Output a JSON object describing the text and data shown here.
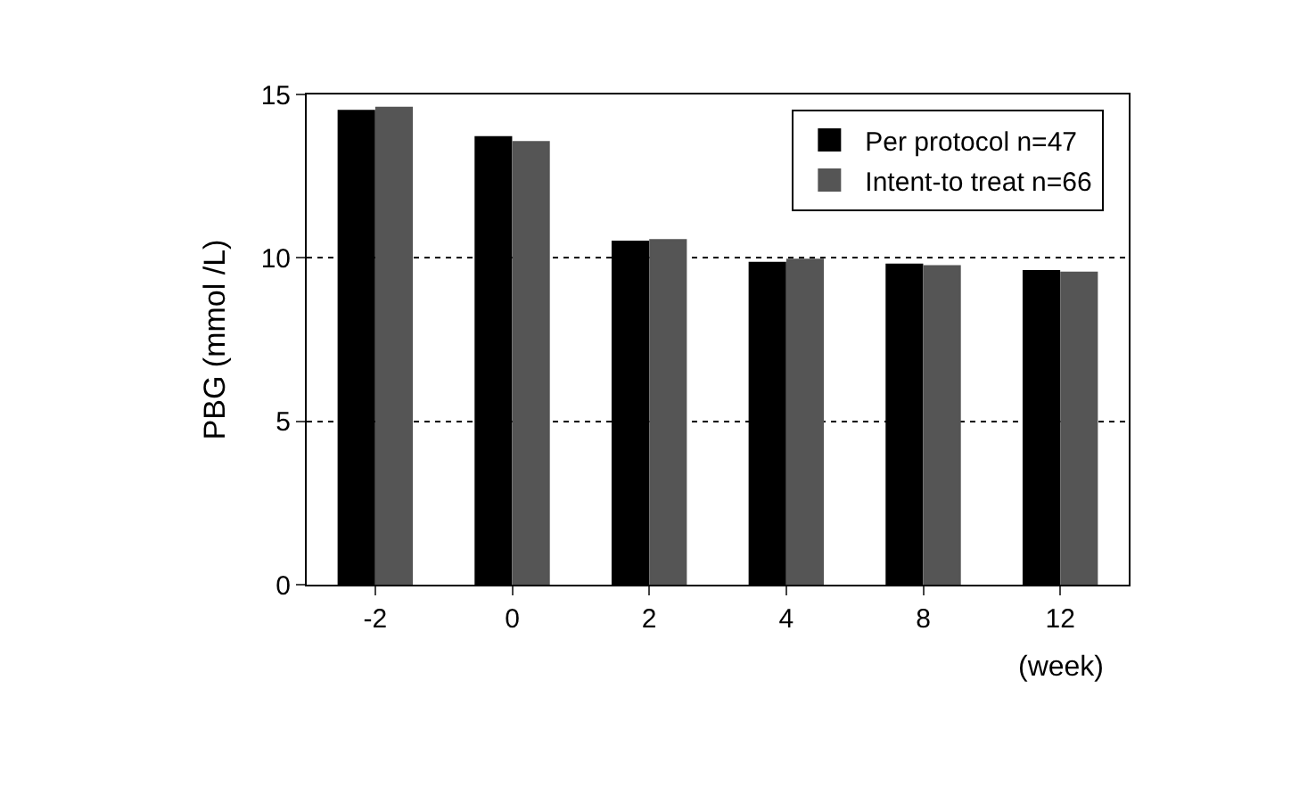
{
  "chart_data": {
    "type": "bar",
    "ylabel": "PBG (mmol /L)",
    "xlabel": "(week)",
    "categories": [
      "-2",
      "0",
      "2",
      "4",
      "8",
      "12"
    ],
    "series": [
      {
        "name": "Per protocol n=47",
        "color": "#000000",
        "values": [
          14.5,
          13.7,
          10.5,
          9.85,
          9.8,
          9.6
        ]
      },
      {
        "name": "Intent-to treat n=66",
        "color": "#555555",
        "values": [
          14.6,
          13.55,
          10.55,
          9.95,
          9.75,
          9.55
        ]
      }
    ],
    "ylim": [
      0,
      15
    ],
    "yticks": [
      0,
      5,
      10,
      15
    ],
    "grid": "y",
    "legend": "top right"
  }
}
